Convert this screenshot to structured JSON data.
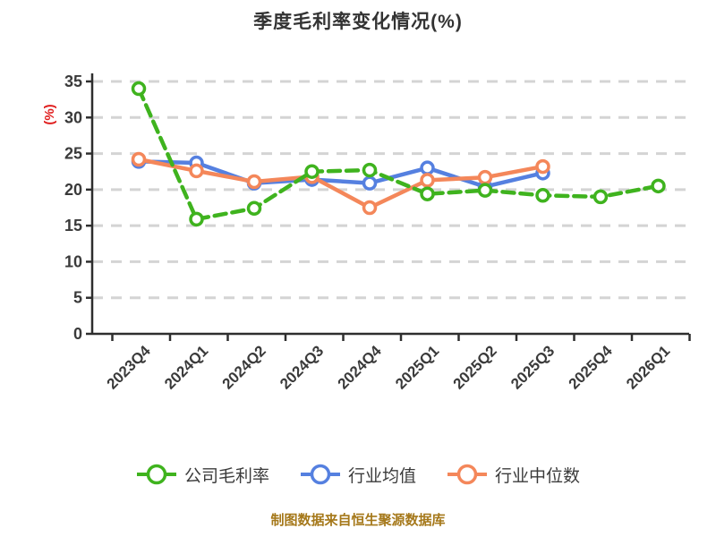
{
  "title": "季度毛利率变化情况(%)",
  "caption": "制图数据来自恒生聚源数据库",
  "colors": {
    "title_text": "#333333",
    "tick_text": "#3a3a3a",
    "axis": "#2e2e2e",
    "gridline": "#d4d4d4",
    "ylabel_red": "#e01e1e",
    "caption_gold": "#a5781a",
    "legend_text": "#3b3b3b",
    "marker_fill": "#ffffff",
    "series_green": "#3fb31e",
    "series_blue": "#5580e0",
    "series_orange": "#f4875a"
  },
  "chart_data": {
    "type": "line",
    "title": "季度毛利率变化情况(%)",
    "xlabel": "",
    "ylabel": "(%)",
    "ylim": [
      0,
      35
    ],
    "ytick_step": 5,
    "yticks": [
      0,
      5,
      10,
      15,
      20,
      25,
      30,
      35
    ],
    "grid": "horizontal-dashed",
    "legend_position": "bottom",
    "categories": [
      "2023Q4",
      "2024Q1",
      "2024Q2",
      "2024Q3",
      "2024Q4",
      "2025Q1",
      "2025Q2",
      "2025Q3",
      "2025Q4",
      "2026Q1"
    ],
    "series": [
      {
        "name": "行业均值",
        "color": "#5580e0",
        "line_style": "solid",
        "marker": "circle-white-fill",
        "values": [
          23.9,
          23.7,
          20.9,
          21.4,
          20.9,
          23.0,
          20.4,
          22.3,
          null,
          null
        ]
      },
      {
        "name": "行业中位数",
        "color": "#f4875a",
        "line_style": "solid",
        "marker": "circle-white-fill",
        "values": [
          24.2,
          22.6,
          21.1,
          21.8,
          17.5,
          21.3,
          21.7,
          23.2,
          null,
          null
        ]
      },
      {
        "name": "公司毛利率",
        "color": "#3fb31e",
        "line_style": "dashed",
        "marker": "circle-white-fill",
        "values": [
          34.0,
          15.9,
          17.4,
          22.5,
          22.7,
          19.4,
          19.9,
          19.2,
          19.0,
          20.5
        ]
      }
    ],
    "legend_order": [
      "公司毛利率",
      "行业均值",
      "行业中位数"
    ]
  }
}
